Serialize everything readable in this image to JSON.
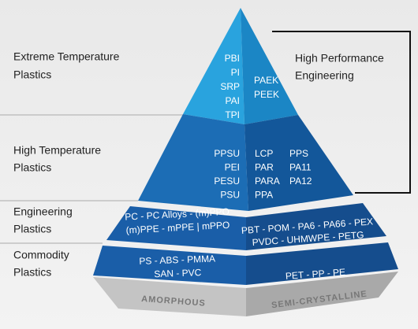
{
  "labels": [
    {
      "lines": [
        "Extreme Temperature",
        "Plastics"
      ]
    },
    {
      "lines": [
        "High Temperature",
        "Plastics"
      ]
    },
    {
      "lines": [
        "Engineering",
        "Plastics"
      ]
    },
    {
      "lines": [
        "Commodity",
        "Plastics"
      ]
    }
  ],
  "bracket": {
    "lines": [
      "High Performance",
      "Engineering"
    ]
  },
  "pyramid": {
    "extreme": {
      "left": [
        "PBI",
        "PI",
        "SRP",
        "PAI",
        "TPI"
      ],
      "right": [
        "PAEK",
        "PEEK"
      ]
    },
    "high": {
      "left": [
        "PPSU",
        "PEI",
        "PESU",
        "PSU"
      ],
      "middle": [
        "LCP",
        "PAR",
        "PARA",
        "PPA"
      ],
      "right": [
        "PPS",
        "PA11",
        "PA12"
      ]
    },
    "engineering": {
      "left": [
        "PC - PC Alloys - (m)PPO",
        "(m)PPE - mPPE | mPPO"
      ],
      "right": [
        "PBT - POM - PA6 - PA66 - PEX",
        "PVDC - UHMWPE - PETG"
      ]
    },
    "commodity": {
      "left": [
        "PS - ABS - PMMA",
        "SAN - PVC"
      ],
      "right": [
        "PET - PP - PE"
      ]
    }
  },
  "base": {
    "left": "AMORPHOUS",
    "right": "SEMI-CRYSTALLINE"
  }
}
